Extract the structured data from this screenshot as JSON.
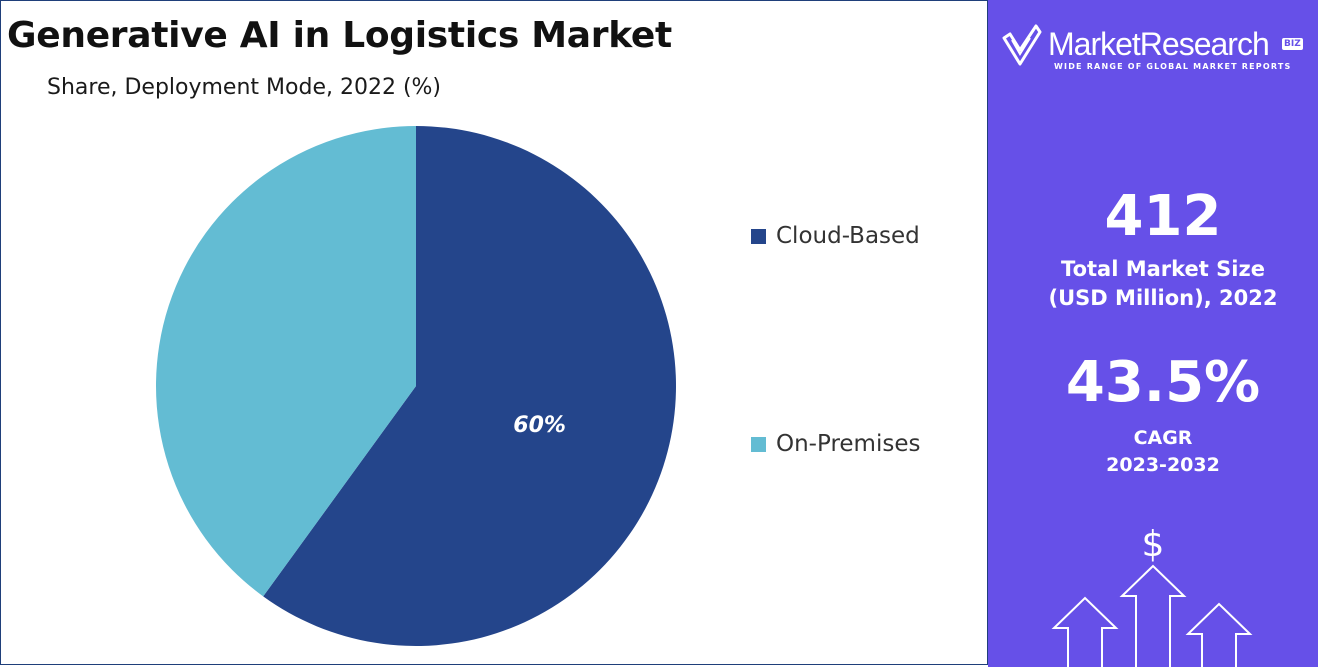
{
  "title": "Generative AI in Logistics Market",
  "subtitle": "Share, Deployment Mode, 2022 (%)",
  "chart_data": {
    "type": "pie",
    "title": "Generative AI in Logistics Market",
    "subtitle": "Share, Deployment Mode, 2022 (%)",
    "categories": [
      "Cloud-Based",
      "On-Premises"
    ],
    "values": [
      60,
      40
    ],
    "unit": "%",
    "colors": [
      "#24458b",
      "#63bcd3"
    ],
    "data_labels": [
      "60%",
      ""
    ],
    "legend_position": "right"
  },
  "brand": {
    "name": "MarketResearch",
    "badge": "BIZ",
    "tagline": "WIDE RANGE OF GLOBAL MARKET REPORTS"
  },
  "stats": {
    "market_size_value": "412",
    "market_size_label_line1": "Total Market Size",
    "market_size_label_line2": "(USD Million), 2022",
    "cagr_value": "43.5%",
    "cagr_label_line1": "CAGR",
    "cagr_label_line2": "2023-2032"
  },
  "growth_graphic": {
    "currency_symbol": "$",
    "icon": "growth-arrows-icon"
  },
  "colors": {
    "panel_background": "#6650e8",
    "cloud_based": "#24458b",
    "on_premises": "#63bcd3"
  }
}
